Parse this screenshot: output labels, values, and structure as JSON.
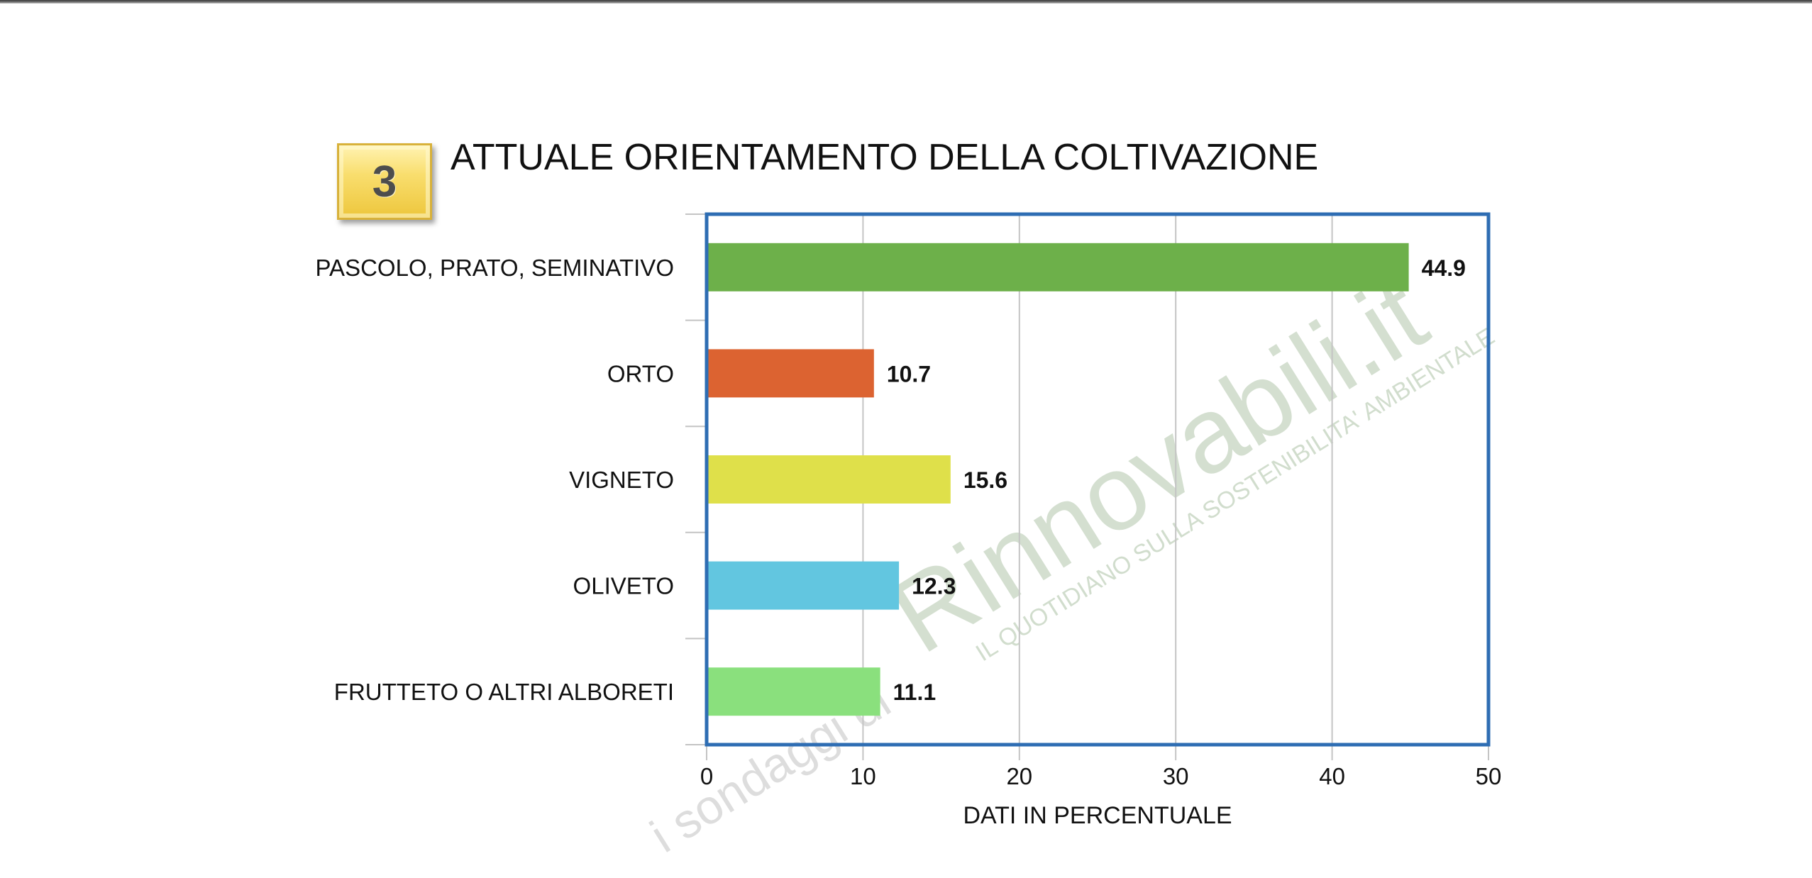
{
  "badge": {
    "number": "3"
  },
  "title": "ATTUALE ORIENTAMENTO DELLA COLTIVAZIONE",
  "colors": {
    "frame": "#2e6db3",
    "grid": "#c4c4c4",
    "tick": "#c4c4c4",
    "watermark": "#c9d7c4"
  },
  "watermark": {
    "brand": "Rinnovabili.it",
    "prefix": "i sondaggi di",
    "tagline": "IL QUOTIDIANO SULLA SOSTENIBILITA' AMBIENTALE"
  },
  "chart_data": {
    "type": "bar",
    "orientation": "horizontal",
    "title": "ATTUALE ORIENTAMENTO DELLA COLTIVAZIONE",
    "categories": [
      "PASCOLO, PRATO, SEMINATIVO",
      "ORTO",
      "VIGNETO",
      "OLIVETO",
      "FRUTTETO O ALTRI ALBORETI"
    ],
    "values": [
      44.9,
      10.7,
      15.6,
      12.3,
      11.1
    ],
    "value_labels": [
      "44.9",
      "10.7",
      "15.6",
      "12.3",
      "11.1"
    ],
    "bar_colors": [
      "#6db04a",
      "#dc6331",
      "#dfe04a",
      "#62c6e0",
      "#8ae07d"
    ],
    "xlabel": "DATI IN PERCENTUALE",
    "ylabel": "",
    "xlim": [
      0,
      50
    ],
    "xticks": [
      "0",
      "10",
      "20",
      "30",
      "40",
      "50"
    ],
    "grid": "vertical",
    "legend": "none"
  }
}
